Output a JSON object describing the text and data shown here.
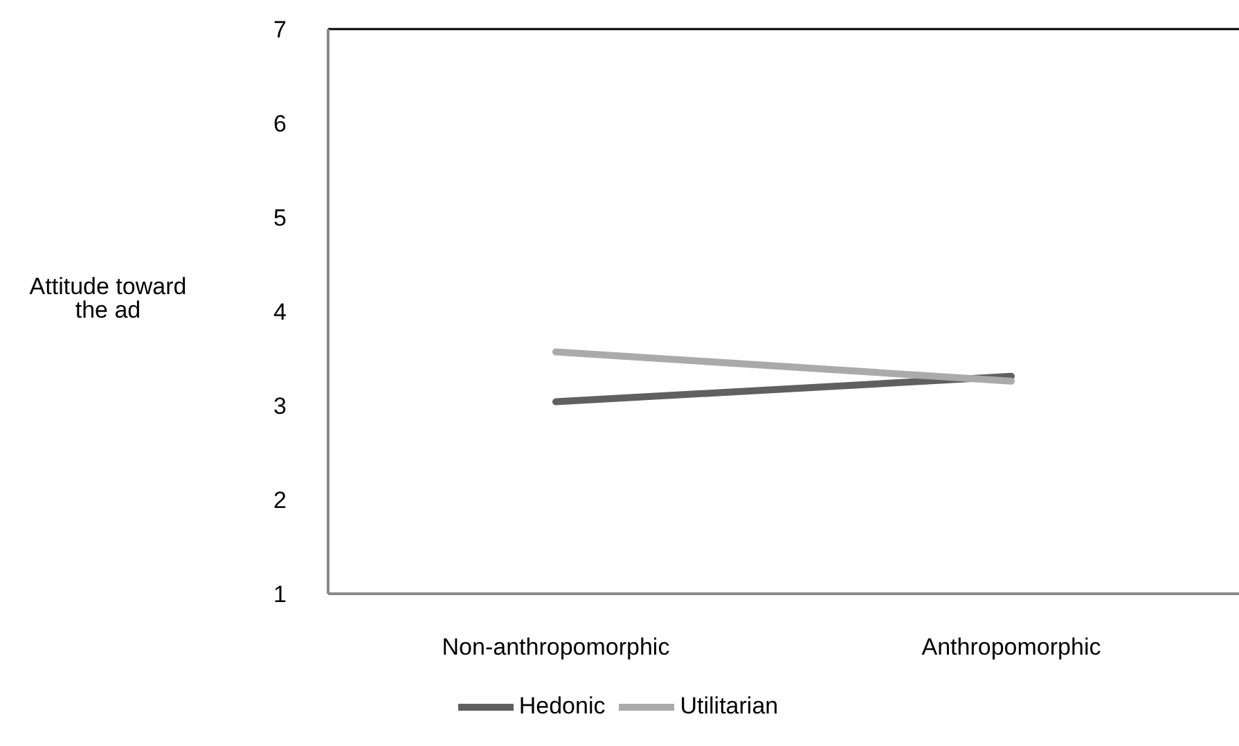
{
  "chart_data": {
    "type": "line",
    "ylabel": "Attitude toward the ad",
    "categories": [
      "Non-anthropomorphic",
      "Anthropomorphic"
    ],
    "series": [
      {
        "name": "Hedonic",
        "color": "#606060",
        "values": [
          3.04,
          3.31
        ]
      },
      {
        "name": "Utilitarian",
        "color": "#aaaaaa",
        "values": [
          3.57,
          3.26
        ]
      }
    ],
    "ylim": [
      1,
      7
    ],
    "yticks": [
      1,
      2,
      3,
      4,
      5,
      6,
      7
    ],
    "grid": false,
    "legend": "bottom",
    "marker": "none",
    "line_style": "solid"
  }
}
